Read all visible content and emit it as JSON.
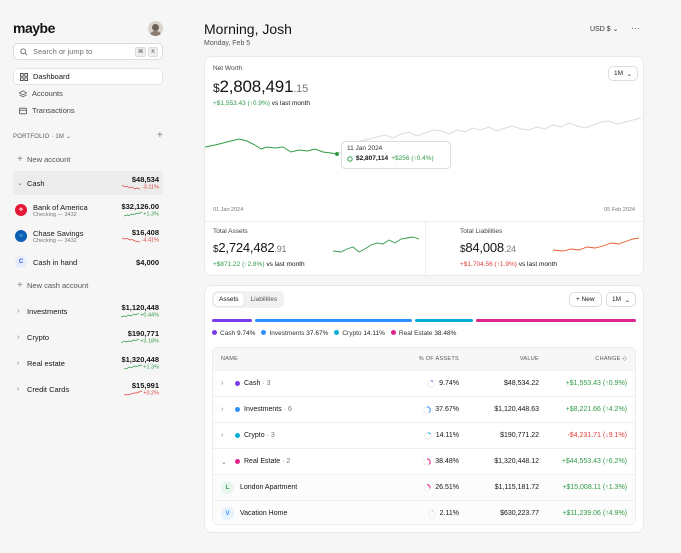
{
  "app": {
    "logo": "maybe"
  },
  "search": {
    "placeholder": "Search or jump to",
    "kbd": [
      "⌘",
      "K"
    ]
  },
  "nav": [
    {
      "label": "Dashboard",
      "icon": "grid-icon",
      "active": true
    },
    {
      "label": "Accounts",
      "icon": "layers-icon",
      "active": false
    },
    {
      "label": "Transactions",
      "icon": "credit-card-icon",
      "active": false
    }
  ],
  "portfolio": {
    "label": "PORTFOLIO",
    "period": "1M"
  },
  "sidebar_accounts": {
    "new_account": "New account",
    "cash": {
      "name": "Cash",
      "amount": "$48,534",
      "change": "-3.11%"
    },
    "bank": {
      "name": "Bank of America",
      "sub": "Checking — 3432",
      "amount": "$32,126.00",
      "change": "+1.3%"
    },
    "chase": {
      "name": "Chase Savings",
      "sub": "Checking — 3432",
      "amount": "$16,408",
      "change": "-4.41%"
    },
    "cash_in_hand": {
      "name": "Cash in hand",
      "amount": "$4,000",
      "icon_letter": "C"
    },
    "new_cash": "New cash account",
    "investments": {
      "name": "Investments",
      "amount": "$1,120,448",
      "change": "+0.44%"
    },
    "crypto": {
      "name": "Crypto",
      "amount": "$190,771",
      "change": "+3.18%"
    },
    "real_estate": {
      "name": "Real estate",
      "amount": "$1,320,448",
      "change": "+1.3%"
    },
    "credit_cards": {
      "name": "Credit Cards",
      "amount": "$15,991",
      "change": "+0.2%"
    }
  },
  "header": {
    "greeting": "Morning, Josh",
    "date": "Monday, Feb 5",
    "currency": "USD $",
    "more": "···"
  },
  "net_worth": {
    "label": "Net Worth",
    "currency_sign": "$",
    "whole": "2,808,491",
    "decimal": ".15",
    "change": "+$1,553.43 (↑0.9%)",
    "change_suffix": "vs last month",
    "period": "1M",
    "tooltip": {
      "date": "11 Jan 2024",
      "value": "$2,807,114",
      "delta": "+$256 (↑0.4%)"
    },
    "axis_start": "01 Jan 2024",
    "axis_end": "05 Feb 2024"
  },
  "assets": {
    "label": "Total Assets",
    "currency_sign": "$",
    "whole": "2,724,482",
    "decimal": ".91",
    "change": "+$871.22 (↑2.8%)",
    "change_suffix": "vs last month"
  },
  "liabilities": {
    "label": "Total Liabilities",
    "currency_sign": "$",
    "whole": "84,008",
    "decimal": ".24",
    "change": "+$1,704.56 (↑1.9%)",
    "change_suffix": "vs last month"
  },
  "alloc": {
    "tabs": [
      "Assets",
      "Liabilities"
    ],
    "new_label": "+ New",
    "period": "1M",
    "legend": [
      {
        "name": "Cash",
        "pct": "9.74%",
        "color": "#7c3aed"
      },
      {
        "name": "Investments",
        "pct": "37.67%",
        "color": "#2e90fa"
      },
      {
        "name": "Crypto",
        "pct": "14.11%",
        "color": "#06aed4"
      },
      {
        "name": "Real Estate",
        "pct": "38.48%",
        "color": "#dd2590"
      }
    ],
    "columns": {
      "name": "NAME",
      "pct": "% OF ASSETS",
      "value": "VALUE",
      "change": "CHANGE ◇"
    },
    "rows": [
      {
        "name": "Cash",
        "count": "· 3",
        "pct": "9.74%",
        "value": "$48,534.22",
        "change": "+$1,553.43 (↑0.9%)",
        "color": "#7c3aed",
        "chev": "›"
      },
      {
        "name": "Investments",
        "count": "· 6",
        "pct": "37.67%",
        "value": "$1,120,448.63",
        "change": "+$8,221.66 (↑4.2%)",
        "color": "#2e90fa",
        "chev": "›"
      },
      {
        "name": "Crypto",
        "count": "· 3",
        "pct": "14.11%",
        "value": "$190,771.22",
        "change": "-$4,231.71 (↓9.1%)",
        "color": "#06aed4",
        "chev": "›"
      },
      {
        "name": "Real Estate",
        "count": "· 2",
        "pct": "38.48%",
        "value": "$1,320,448.12",
        "change": "+$44,553.43 (↑6.2%)",
        "color": "#dd2590",
        "chev": "⌄"
      }
    ],
    "sub_rows": [
      {
        "icon": "L",
        "name": "London Apartment",
        "pct": "26.51%",
        "value": "$1,115,181.72",
        "change": "+$15,008.11 (↑1.3%)"
      },
      {
        "icon": "V",
        "name": "Vacation Home",
        "pct": "2.11%",
        "value": "$630,223.77",
        "change": "+$11,239.06 (↑4.9%)"
      }
    ]
  }
}
